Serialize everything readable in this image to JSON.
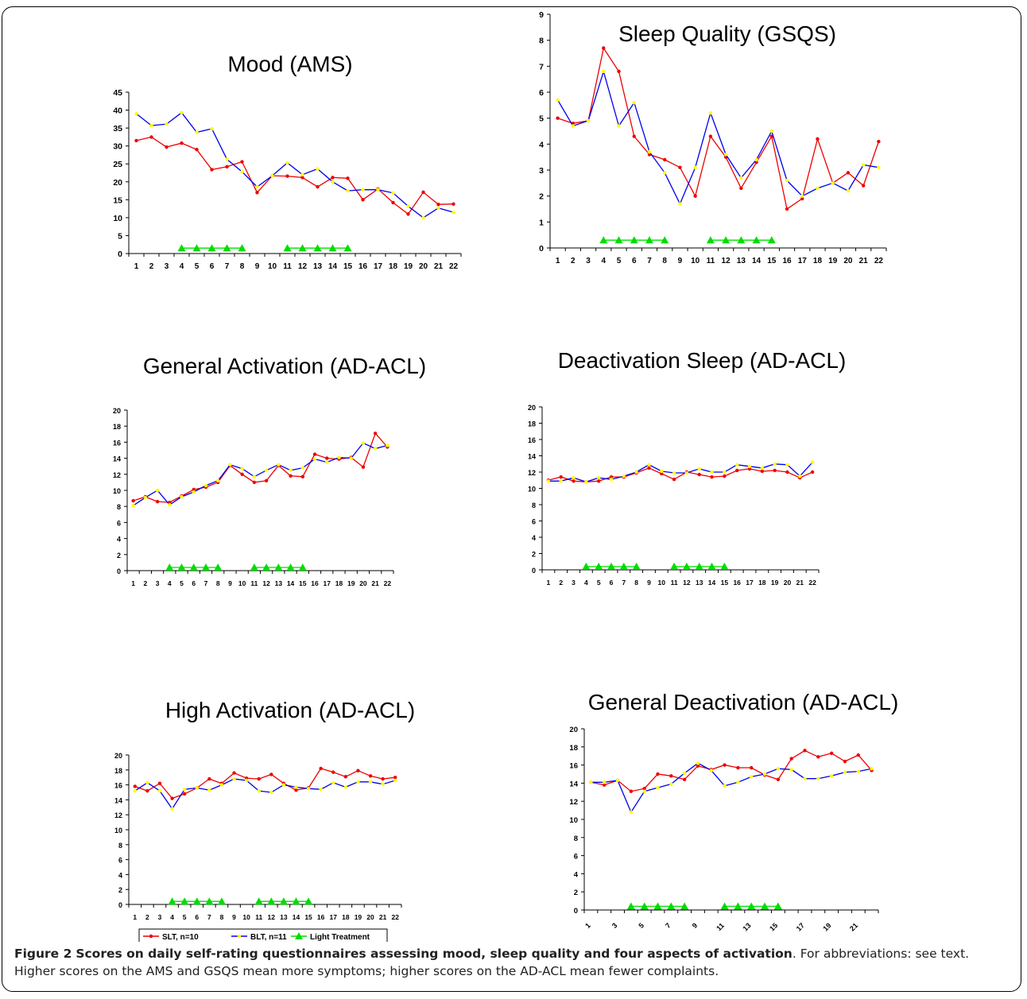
{
  "caption": {
    "label": "Figure 2",
    "title": "Scores on daily self-rating questionnaires assessing mood, sleep quality and four aspects of activation",
    "text": ". For abbreviations: see text. Higher scores on the AMS and GSQS mean more symptoms; higher scores on the AD-ACL mean fewer complaints."
  },
  "legend": {
    "entries": [
      "SLT, n=10",
      "BLT, n=11",
      "Light Treatment"
    ]
  },
  "colors": {
    "slt": "#ee0000",
    "blt": "#0000ee",
    "blt_marker": "#ffff00",
    "light": "#00dd00"
  },
  "chart_data": [
    {
      "type": "line",
      "title": "Mood (AMS)",
      "x": [
        1,
        2,
        3,
        4,
        5,
        6,
        7,
        8,
        9,
        10,
        11,
        12,
        13,
        14,
        15,
        16,
        17,
        18,
        19,
        20,
        21,
        22
      ],
      "ylim": [
        0,
        45
      ],
      "yticks": [
        0,
        5,
        10,
        15,
        20,
        25,
        30,
        35,
        40,
        45
      ],
      "series": [
        {
          "name": "SLT, n=10",
          "values": [
            31.5,
            32.5,
            29.7,
            30.8,
            29,
            23.4,
            24.2,
            25.6,
            17,
            21.7,
            21.6,
            21.2,
            18.6,
            21.2,
            21,
            15,
            18,
            14.2,
            11,
            17.1,
            13.7,
            13.8
          ]
        },
        {
          "name": "BLT, n=11",
          "values": [
            39,
            35.7,
            36.1,
            39.3,
            33.8,
            34.8,
            26.3,
            22.8,
            18.6,
            21.7,
            25.3,
            22,
            23.6,
            20,
            17.5,
            17.8,
            17.8,
            16.9,
            13.2,
            10,
            12.7,
            11.5
          ]
        },
        {
          "name": "Light Treatment",
          "x": [
            4,
            5,
            6,
            7,
            8,
            11,
            12,
            13,
            14,
            15
          ],
          "values": [
            1.5,
            1.5,
            1.5,
            1.5,
            1.5,
            1.5,
            1.5,
            1.5,
            1.5,
            1.5
          ]
        }
      ]
    },
    {
      "type": "line",
      "title": "Sleep Quality (GSQS)",
      "x": [
        1,
        2,
        3,
        4,
        5,
        6,
        7,
        8,
        9,
        10,
        11,
        12,
        13,
        14,
        15,
        16,
        17,
        18,
        19,
        20,
        21,
        22
      ],
      "ylim": [
        0,
        9
      ],
      "yticks": [
        0,
        1,
        2,
        3,
        4,
        5,
        6,
        7,
        8,
        9
      ],
      "series": [
        {
          "name": "SLT, n=10",
          "values": [
            5,
            4.8,
            4.9,
            7.7,
            6.8,
            4.3,
            3.6,
            3.4,
            3.1,
            2,
            4.3,
            3.5,
            2.3,
            3.3,
            4.3,
            1.5,
            1.9,
            4.2,
            2.5,
            2.9,
            2.4,
            4.1
          ]
        },
        {
          "name": "BLT, n=11",
          "values": [
            5.7,
            4.7,
            4.9,
            6.8,
            4.7,
            5.6,
            3.7,
            2.9,
            1.7,
            3.1,
            5.2,
            3.6,
            2.7,
            3.4,
            4.5,
            2.6,
            2,
            2.3,
            2.5,
            2.2,
            3.2,
            3.1
          ]
        },
        {
          "name": "Light Treatment",
          "x": [
            4,
            5,
            6,
            7,
            8,
            11,
            12,
            13,
            14,
            15
          ],
          "values": [
            0.3,
            0.3,
            0.3,
            0.3,
            0.3,
            0.3,
            0.3,
            0.3,
            0.3,
            0.3
          ]
        }
      ]
    },
    {
      "type": "line",
      "title": "General Activation (AD-ACL)",
      "x": [
        1,
        2,
        3,
        4,
        5,
        6,
        7,
        8,
        9,
        10,
        11,
        12,
        13,
        14,
        15,
        16,
        17,
        18,
        19,
        20,
        21,
        22
      ],
      "ylim": [
        0,
        20
      ],
      "yticks": [
        0,
        2,
        4,
        6,
        8,
        10,
        12,
        14,
        16,
        18,
        20
      ],
      "series": [
        {
          "name": "SLT, n=10",
          "values": [
            8.7,
            9.2,
            8.6,
            8.5,
            9.3,
            10.1,
            10.4,
            11,
            13.1,
            12,
            11,
            11.2,
            13.1,
            11.8,
            11.7,
            14.5,
            14,
            13.9,
            14.1,
            12.9,
            17.1,
            15.4
          ]
        },
        {
          "name": "BLT, n=11",
          "values": [
            8.1,
            9.1,
            10,
            8.2,
            9.2,
            9.8,
            10.6,
            11.2,
            13.2,
            12.7,
            11.7,
            12.5,
            13.2,
            12.5,
            12.8,
            13.9,
            13.5,
            14.1,
            14,
            15.9,
            15.2,
            15.6
          ]
        },
        {
          "name": "Light Treatment",
          "x": [
            4,
            5,
            6,
            7,
            8,
            11,
            12,
            13,
            14,
            15
          ],
          "values": [
            0.4,
            0.4,
            0.4,
            0.4,
            0.4,
            0.4,
            0.4,
            0.4,
            0.4,
            0.4
          ]
        }
      ]
    },
    {
      "type": "line",
      "title": "Deactivation Sleep (AD-ACL)",
      "x": [
        1,
        2,
        3,
        4,
        5,
        6,
        7,
        8,
        9,
        10,
        11,
        12,
        13,
        14,
        15,
        16,
        17,
        18,
        19,
        20,
        21,
        22
      ],
      "ylim": [
        0,
        20
      ],
      "yticks": [
        0,
        2,
        4,
        6,
        8,
        10,
        12,
        14,
        16,
        18,
        20
      ],
      "series": [
        {
          "name": "SLT, n=10",
          "values": [
            11,
            11.4,
            10.9,
            10.8,
            10.9,
            11.4,
            11.4,
            11.9,
            12.5,
            11.8,
            11.1,
            12,
            11.7,
            11.4,
            11.5,
            12.2,
            12.4,
            12.1,
            12.2,
            12,
            11.3,
            12
          ]
        },
        {
          "name": "BLT, n=11",
          "values": [
            10.9,
            10.9,
            11.3,
            10.8,
            11.3,
            11.1,
            11.5,
            12,
            12.9,
            12.1,
            11.9,
            11.9,
            12.4,
            12,
            12,
            12.9,
            12.7,
            12.5,
            13,
            12.9,
            11.5,
            13.2
          ]
        },
        {
          "name": "Light Treatment",
          "x": [
            4,
            5,
            6,
            7,
            8,
            11,
            12,
            13,
            14,
            15
          ],
          "values": [
            0.4,
            0.4,
            0.4,
            0.4,
            0.4,
            0.4,
            0.4,
            0.4,
            0.4,
            0.4
          ]
        }
      ]
    },
    {
      "type": "line",
      "title": "High Activation (AD-ACL)",
      "x": [
        1,
        2,
        3,
        4,
        5,
        6,
        7,
        8,
        9,
        10,
        11,
        12,
        13,
        14,
        15,
        16,
        17,
        18,
        19,
        20,
        21,
        22
      ],
      "ylim": [
        0,
        20
      ],
      "yticks": [
        0,
        2,
        4,
        6,
        8,
        10,
        12,
        14,
        16,
        18,
        20
      ],
      "series": [
        {
          "name": "SLT, n=10",
          "values": [
            15.8,
            15.2,
            16.2,
            14.2,
            14.8,
            15.6,
            16.8,
            16.2,
            17.6,
            16.9,
            16.8,
            17.4,
            16.2,
            15.3,
            15.6,
            18.2,
            17.7,
            17.1,
            17.9,
            17.2,
            16.8,
            17
          ]
        },
        {
          "name": "BLT, n=11",
          "values": [
            15.2,
            16.3,
            15.2,
            12.8,
            15.4,
            15.6,
            15.3,
            16,
            16.8,
            16.6,
            15.2,
            15,
            16,
            15.7,
            15.5,
            15.4,
            16.3,
            15.7,
            16.4,
            16.4,
            16.1,
            16.6
          ]
        },
        {
          "name": "Light Treatment",
          "x": [
            4,
            5,
            6,
            7,
            8,
            11,
            12,
            13,
            14,
            15
          ],
          "values": [
            0.4,
            0.4,
            0.4,
            0.4,
            0.4,
            0.4,
            0.4,
            0.4,
            0.4,
            0.4
          ]
        }
      ]
    },
    {
      "type": "line",
      "title": "General Deactivation (AD-ACL)",
      "x": [
        1,
        2,
        3,
        4,
        5,
        6,
        7,
        8,
        9,
        10,
        11,
        12,
        13,
        14,
        15,
        16,
        17,
        18,
        19,
        20,
        21,
        22
      ],
      "xticks": [
        1,
        3,
        5,
        7,
        9,
        11,
        13,
        15,
        17,
        19,
        21
      ],
      "ylim": [
        0,
        20
      ],
      "yticks": [
        0,
        2,
        4,
        6,
        8,
        10,
        12,
        14,
        16,
        18,
        20
      ],
      "series": [
        {
          "name": "SLT, n=10",
          "values": [
            14.1,
            13.8,
            14.3,
            13.1,
            13.4,
            15,
            14.8,
            14.4,
            15.9,
            15.5,
            16,
            15.7,
            15.7,
            14.9,
            14.4,
            16.7,
            17.6,
            16.9,
            17.3,
            16.4,
            17.1,
            15.4
          ]
        },
        {
          "name": "BLT, n=11",
          "values": [
            14.1,
            14.1,
            14.3,
            10.8,
            13.1,
            13.5,
            13.9,
            15.1,
            16.2,
            15.4,
            13.7,
            14.1,
            14.7,
            15,
            15.6,
            15.5,
            14.5,
            14.5,
            14.8,
            15.2,
            15.3,
            15.6
          ]
        },
        {
          "name": "Light Treatment",
          "x": [
            4,
            5,
            6,
            7,
            8,
            11,
            12,
            13,
            14,
            15
          ],
          "values": [
            0.4,
            0.4,
            0.4,
            0.4,
            0.4,
            0.4,
            0.4,
            0.4,
            0.4,
            0.4
          ]
        }
      ]
    }
  ]
}
